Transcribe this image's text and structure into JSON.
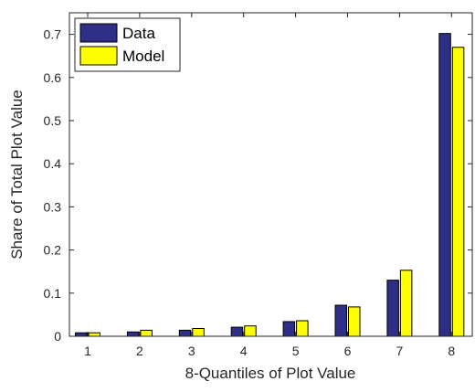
{
  "chart_data": {
    "type": "bar",
    "title": "",
    "xlabel": "8-Quantiles of Plot Value",
    "ylabel": "Share of Total Plot Value",
    "categories": [
      "1",
      "2",
      "3",
      "4",
      "5",
      "6",
      "7",
      "8"
    ],
    "ylim": [
      0,
      0.75
    ],
    "yticks": [
      0,
      0.1,
      0.2,
      0.3,
      0.4,
      0.5,
      0.6,
      0.7
    ],
    "ytick_labels": [
      "0",
      "0.1",
      "0.2",
      "0.3",
      "0.4",
      "0.5",
      "0.6",
      "0.7"
    ],
    "grid": false,
    "legend_position": "top-left",
    "series": [
      {
        "name": "Data",
        "color": "#2e2e86",
        "values": [
          0.008,
          0.01,
          0.014,
          0.021,
          0.034,
          0.072,
          0.13,
          0.702
        ]
      },
      {
        "name": "Model",
        "color": "#ffff00",
        "values": [
          0.008,
          0.014,
          0.018,
          0.024,
          0.036,
          0.068,
          0.153,
          0.67
        ]
      }
    ]
  }
}
